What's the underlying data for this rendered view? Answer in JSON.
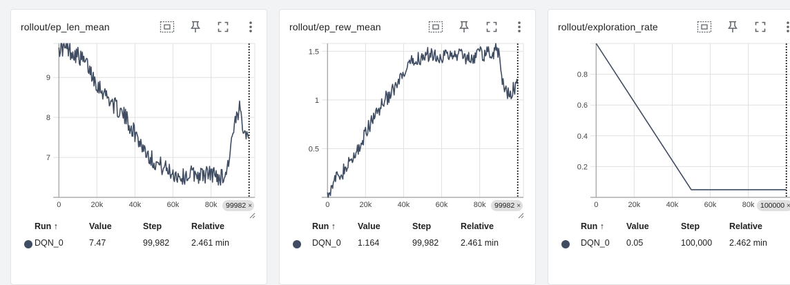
{
  "colors": {
    "background": "#f1f3f4",
    "card": "#ffffff",
    "series": "#3f4c61",
    "grid": "#e0e0e0",
    "axis": "#9e9e9e"
  },
  "toolbar_icons": [
    "fit-domain-icon",
    "pin-icon",
    "fullscreen-icon",
    "more-vert-icon"
  ],
  "table_headers": {
    "run": "Run ↑",
    "value": "Value",
    "step": "Step",
    "relative": "Relative"
  },
  "cards": [
    {
      "title": "rollout/ep_len_mean",
      "step_chip": "99982",
      "chip_close": "×",
      "row": {
        "run": "DQN_0",
        "value": "7.47",
        "step": "99,982",
        "relative": "2.461 min"
      }
    },
    {
      "title": "rollout/ep_rew_mean",
      "step_chip": "99982",
      "chip_close": "×",
      "row": {
        "run": "DQN_0",
        "value": "1.164",
        "step": "99,982",
        "relative": "2.461 min"
      }
    },
    {
      "title": "rollout/exploration_rate",
      "step_chip": "100000",
      "chip_close": "×",
      "row": {
        "run": "DQN_0",
        "value": "0.05",
        "step": "100,000",
        "relative": "2.462 min"
      }
    }
  ],
  "chart_data": [
    {
      "type": "line",
      "title": "rollout/ep_len_mean",
      "xlim": [
        -3000,
        103000
      ],
      "ylim": [
        6.0,
        9.85
      ],
      "x_ticks": [
        0,
        20000,
        40000,
        60000,
        80000
      ],
      "x_tick_labels": [
        "0",
        "20k",
        "40k",
        "60k",
        "80k"
      ],
      "y_ticks": [
        7,
        8,
        9
      ],
      "y_tick_labels": [
        "7",
        "8",
        "9"
      ],
      "cursor_x": 99982,
      "grid": true,
      "series": [
        {
          "x": [
            0,
            5000,
            10000,
            15000,
            20000,
            25000,
            30000,
            35000,
            40000,
            45000,
            50000,
            55000,
            60000,
            65000,
            70000,
            75000,
            80000,
            85000,
            88000,
            92000,
            95000,
            97000,
            99982
          ],
          "y": [
            9.75,
            9.7,
            9.55,
            9.3,
            8.85,
            8.55,
            8.25,
            8.0,
            7.6,
            7.2,
            6.9,
            6.75,
            6.6,
            6.5,
            6.6,
            6.55,
            6.6,
            6.5,
            6.6,
            7.7,
            8.2,
            7.8,
            7.47
          ],
          "noise": 0.22
        }
      ]
    },
    {
      "type": "line",
      "title": "rollout/ep_rew_mean",
      "xlim": [
        -3000,
        103000
      ],
      "ylim": [
        0,
        1.58
      ],
      "x_ticks": [
        0,
        20000,
        40000,
        60000,
        80000
      ],
      "x_tick_labels": [
        "0",
        "20k",
        "40k",
        "60k",
        "80k"
      ],
      "y_ticks": [
        0.5,
        1,
        1.5
      ],
      "y_tick_labels": [
        "0.5",
        "1",
        "1.5"
      ],
      "cursor_x": 99982,
      "grid": true,
      "series": [
        {
          "x": [
            0,
            5000,
            10000,
            15000,
            20000,
            25000,
            30000,
            35000,
            40000,
            45000,
            50000,
            55000,
            60000,
            65000,
            70000,
            75000,
            80000,
            85000,
            88000,
            90000,
            92000,
            95000,
            97000,
            99982
          ],
          "y": [
            0.05,
            0.2,
            0.3,
            0.45,
            0.65,
            0.85,
            1.0,
            1.1,
            1.25,
            1.4,
            1.45,
            1.47,
            1.45,
            1.45,
            1.47,
            1.43,
            1.47,
            1.48,
            1.5,
            1.5,
            1.2,
            1.05,
            1.1,
            1.164
          ],
          "noise": 0.08
        }
      ]
    },
    {
      "type": "line",
      "title": "rollout/exploration_rate",
      "xlim": [
        -3000,
        103000
      ],
      "ylim": [
        0,
        1.0
      ],
      "x_ticks": [
        0,
        20000,
        40000,
        60000,
        80000
      ],
      "x_tick_labels": [
        "0",
        "20k",
        "40k",
        "60k",
        "80k"
      ],
      "y_ticks": [
        0.2,
        0.4,
        0.6,
        0.8
      ],
      "y_tick_labels": [
        "0.2",
        "0.4",
        "0.6",
        "0.8"
      ],
      "cursor_x": 100000,
      "grid": true,
      "series": [
        {
          "x": [
            0,
            50000,
            100000
          ],
          "y": [
            1.0,
            0.05,
            0.05
          ],
          "noise": 0
        }
      ]
    }
  ]
}
